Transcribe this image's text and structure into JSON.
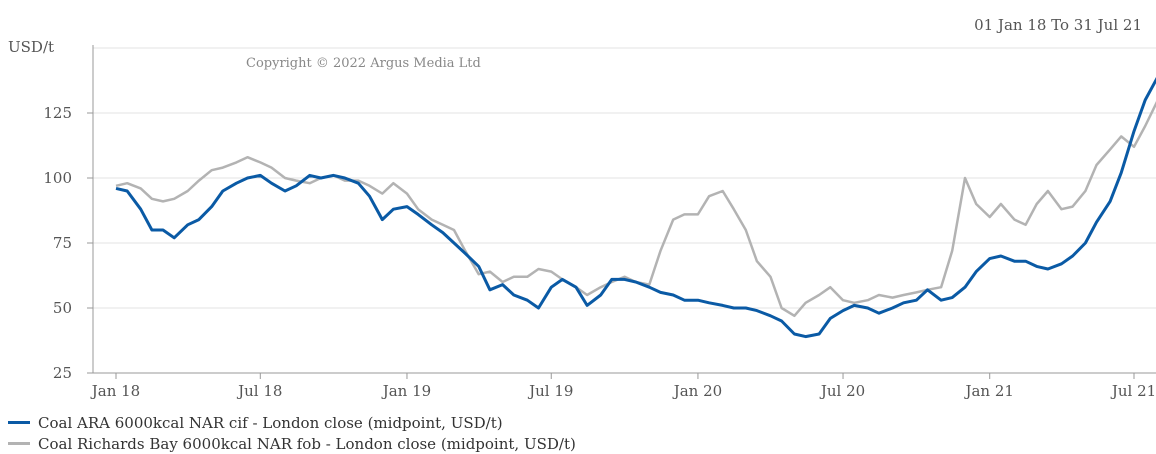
{
  "header": {
    "date_range": "01 Jan 18 To 31 Jul 21"
  },
  "copyright": "Copyright © 2022 Argus Media Ltd",
  "chart_data": {
    "type": "line",
    "ylabel": "USD/t",
    "ylim": [
      25,
      150
    ],
    "yticks": [
      25,
      50,
      75,
      100,
      125
    ],
    "xlim": [
      "2018-01-01",
      "2021-07-31"
    ],
    "xticks": [
      {
        "label": "Jan 18",
        "date": "2018-01-01"
      },
      {
        "label": "Jul 18",
        "date": "2018-07-01"
      },
      {
        "label": "Jan 19",
        "date": "2019-01-01"
      },
      {
        "label": "Jul 19",
        "date": "2019-07-01"
      },
      {
        "label": "Jan 20",
        "date": "2020-01-01"
      },
      {
        "label": "Jul 20",
        "date": "2020-07-01"
      },
      {
        "label": "Jan 21",
        "date": "2021-01-01"
      },
      {
        "label": "Jul 21",
        "date": "2021-07-01"
      }
    ],
    "grid": true,
    "legend_position": "bottom-left",
    "x": [
      "2018-01-01",
      "2018-01-15",
      "2018-02-01",
      "2018-02-15",
      "2018-03-01",
      "2018-03-15",
      "2018-04-01",
      "2018-04-15",
      "2018-05-01",
      "2018-05-15",
      "2018-06-01",
      "2018-06-15",
      "2018-07-01",
      "2018-07-15",
      "2018-08-01",
      "2018-08-15",
      "2018-09-01",
      "2018-09-15",
      "2018-10-01",
      "2018-10-15",
      "2018-11-01",
      "2018-11-15",
      "2018-12-01",
      "2018-12-15",
      "2019-01-01",
      "2019-01-15",
      "2019-02-01",
      "2019-02-15",
      "2019-03-01",
      "2019-03-15",
      "2019-04-01",
      "2019-04-15",
      "2019-05-01",
      "2019-05-15",
      "2019-06-01",
      "2019-06-15",
      "2019-07-01",
      "2019-07-15",
      "2019-08-01",
      "2019-08-15",
      "2019-09-01",
      "2019-09-15",
      "2019-10-01",
      "2019-10-15",
      "2019-11-01",
      "2019-11-15",
      "2019-12-01",
      "2019-12-15",
      "2020-01-01",
      "2020-01-15",
      "2020-02-01",
      "2020-02-15",
      "2020-03-01",
      "2020-03-15",
      "2020-04-01",
      "2020-04-15",
      "2020-05-01",
      "2020-05-15",
      "2020-06-01",
      "2020-06-15",
      "2020-07-01",
      "2020-07-15",
      "2020-08-01",
      "2020-08-15",
      "2020-09-01",
      "2020-09-15",
      "2020-10-01",
      "2020-10-15",
      "2020-11-01",
      "2020-11-15",
      "2020-12-01",
      "2020-12-15",
      "2021-01-01",
      "2021-01-15",
      "2021-02-01",
      "2021-02-15",
      "2021-03-01",
      "2021-03-15",
      "2021-04-01",
      "2021-04-15",
      "2021-05-01",
      "2021-05-15",
      "2021-06-01",
      "2021-06-15",
      "2021-07-01",
      "2021-07-15",
      "2021-07-31"
    ],
    "series": [
      {
        "name": "Coal ARA 6000kcal NAR cif - London close (midpoint, USD/t)",
        "color": "#0a5aa5",
        "values": [
          96,
          95,
          88,
          80,
          80,
          77,
          82,
          84,
          89,
          95,
          98,
          100,
          101,
          98,
          95,
          97,
          101,
          100,
          101,
          100,
          98,
          93,
          84,
          88,
          89,
          86,
          82,
          79,
          75,
          71,
          66,
          57,
          59,
          55,
          53,
          50,
          58,
          61,
          58,
          51,
          55,
          61,
          61,
          60,
          58,
          56,
          55,
          53,
          53,
          52,
          51,
          50,
          50,
          49,
          47,
          45,
          40,
          39,
          40,
          46,
          49,
          51,
          50,
          48,
          50,
          52,
          53,
          57,
          53,
          54,
          58,
          64,
          69,
          70,
          68,
          68,
          66,
          65,
          67,
          70,
          75,
          83,
          91,
          102,
          118,
          130,
          139
        ]
      },
      {
        "name": "Coal Richards Bay 6000kcal NAR fob - London close (midpoint, USD/t)",
        "color": "#b3b3b3",
        "values": [
          97,
          98,
          96,
          92,
          91,
          92,
          95,
          99,
          103,
          104,
          106,
          108,
          106,
          104,
          100,
          99,
          98,
          100,
          101,
          99,
          99,
          97,
          94,
          98,
          94,
          88,
          84,
          82,
          80,
          72,
          63,
          64,
          60,
          62,
          62,
          65,
          64,
          61,
          58,
          55,
          58,
          60,
          62,
          60,
          59,
          72,
          84,
          86,
          86,
          93,
          95,
          88,
          80,
          68,
          62,
          50,
          47,
          52,
          55,
          58,
          53,
          52,
          53,
          55,
          54,
          55,
          56,
          57,
          58,
          72,
          100,
          90,
          85,
          90,
          84,
          82,
          90,
          95,
          88,
          89,
          95,
          105,
          111,
          116,
          112,
          120,
          130
        ]
      }
    ]
  }
}
